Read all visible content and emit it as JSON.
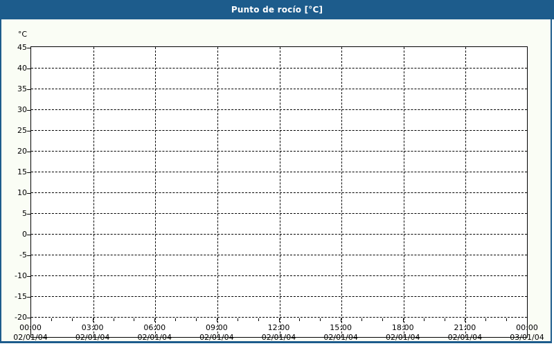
{
  "window": {
    "title": "Punto de rocío [°C]"
  },
  "colors": {
    "titlebar_bg": "#1d5c8c",
    "titlebar_text": "#ffffff",
    "frame_border": "#1d5c8c",
    "content_bg": "#fafdf5",
    "plot_bg": "#ffffff",
    "grid_color": "#000000",
    "label_color": "#000000"
  },
  "chart_data": {
    "type": "line",
    "title": "Punto de rocío [°C]",
    "ylabel": "°C",
    "y_unit_label": "°C",
    "ylim": [
      -20,
      50
    ],
    "ytick_step": 5,
    "yticks": [
      45,
      40,
      35,
      30,
      25,
      20,
      15,
      10,
      5,
      0,
      -5,
      -10,
      -15,
      -20
    ],
    "xlim_hours": [
      0,
      24
    ],
    "x_major_step_hours": 3,
    "x_minor_step_hours": 1,
    "x_ticks": [
      {
        "time": "00:00",
        "date": "02/01/04"
      },
      {
        "time": "03:00",
        "date": "02/01/04"
      },
      {
        "time": "06:00",
        "date": "02/01/04"
      },
      {
        "time": "09:00",
        "date": "02/01/04"
      },
      {
        "time": "12:00",
        "date": "02/01/04"
      },
      {
        "time": "15:00",
        "date": "02/01/04"
      },
      {
        "time": "18:00",
        "date": "02/01/04"
      },
      {
        "time": "21:00",
        "date": "02/01/04"
      },
      {
        "time": "00:00",
        "date": "03/01/04"
      }
    ],
    "grid": true,
    "legend": null,
    "series": []
  }
}
